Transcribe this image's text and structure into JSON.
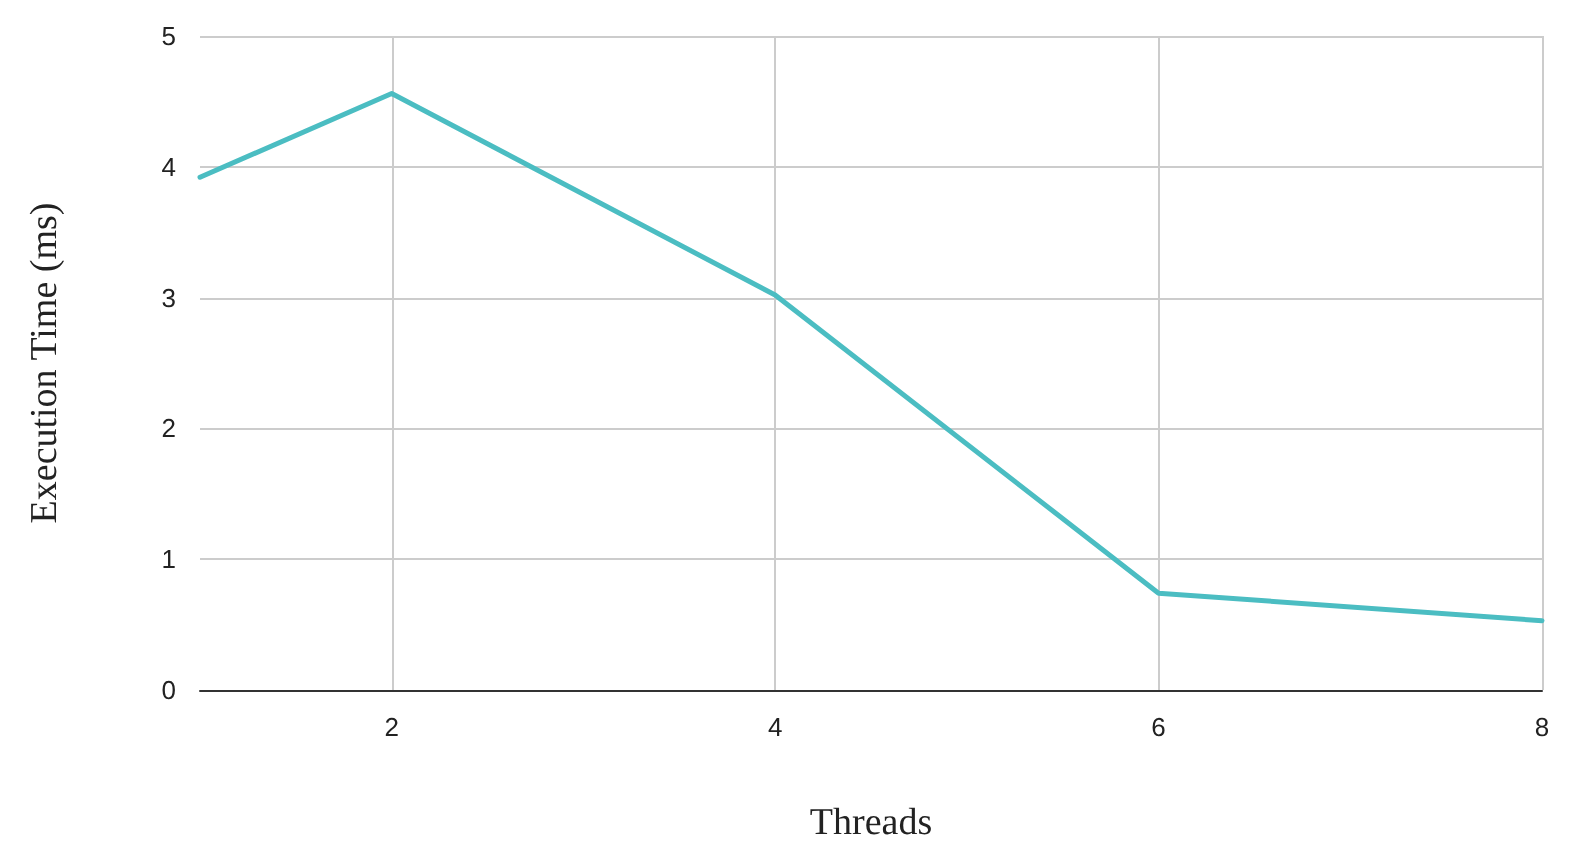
{
  "chart_data": {
    "type": "line",
    "xlabel": "Threads",
    "ylabel": "Execution Time (ms)",
    "x": [
      1,
      2,
      4,
      6,
      8
    ],
    "series": [
      {
        "color": "#4bbdc2",
        "values": [
          3.92,
          4.56,
          3.02,
          0.74,
          0.53
        ]
      }
    ],
    "xlim": [
      1,
      8
    ],
    "xticks": [
      2,
      4,
      6,
      8
    ],
    "ylim": [
      0,
      5
    ],
    "yticks": [
      0,
      1,
      2,
      3,
      4,
      5
    ],
    "grid": true,
    "marker": "none",
    "line_style": "solid"
  }
}
